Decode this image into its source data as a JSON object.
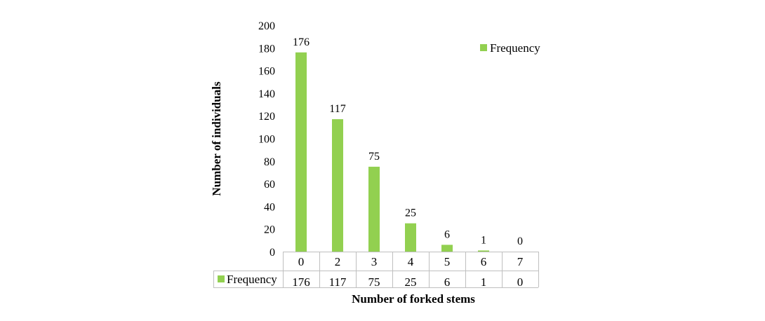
{
  "chart_data": {
    "type": "bar",
    "categories": [
      "0",
      "2",
      "3",
      "4",
      "5",
      "6",
      "7"
    ],
    "series": [
      {
        "name": "Frequency",
        "values": [
          176,
          117,
          75,
          25,
          6,
          1,
          0
        ]
      }
    ],
    "xlabel": "Number of forked stems",
    "ylabel": "Number of individuals",
    "ylim": [
      0,
      200
    ],
    "yticks": [
      0,
      20,
      40,
      60,
      80,
      100,
      120,
      140,
      160,
      180,
      200
    ],
    "legend": "top-right",
    "grid": false,
    "data_table": true,
    "bar_color": "#92d050"
  }
}
